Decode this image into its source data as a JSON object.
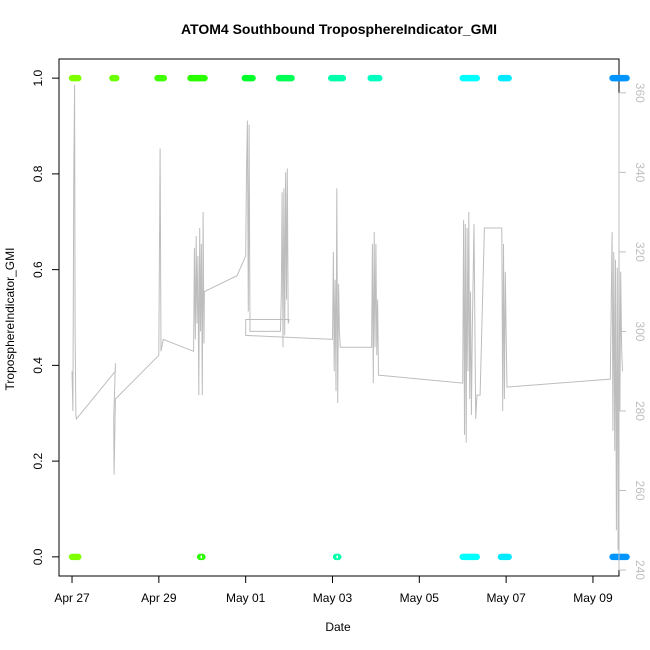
{
  "chart_data": {
    "type": "scatter",
    "title": "ATOM4 Southbound TroposphereIndicator_GMI",
    "xlabel": "Date",
    "ylabel": "TroposphereIndicator_GMI",
    "x_range_days": [
      -0.3,
      12.6
    ],
    "x_ticks": [
      {
        "day": 0,
        "label": "Apr 27"
      },
      {
        "day": 2,
        "label": "Apr 29"
      },
      {
        "day": 4,
        "label": "May 01"
      },
      {
        "day": 6,
        "label": "May 03"
      },
      {
        "day": 8,
        "label": "May 05"
      },
      {
        "day": 10,
        "label": "May 07"
      },
      {
        "day": 12,
        "label": "May 09"
      }
    ],
    "ylim": [
      -0.04,
      1.04
    ],
    "y_ticks": [
      0.0,
      0.2,
      0.4,
      0.6,
      0.8,
      1.0
    ],
    "y_tick_labels": [
      "0.0",
      "0.2",
      "0.4",
      "0.6",
      "0.8",
      "1.0"
    ],
    "y2_range": [
      238.5,
      368.5
    ],
    "y2_ticks": [
      240,
      260,
      280,
      300,
      320,
      340,
      360
    ],
    "y2_tick_labels": [
      "240",
      "260",
      "280",
      "300",
      "320",
      "340",
      "360"
    ],
    "y2_color": "#bfbfbf",
    "indicator_series": [
      {
        "start": 0.0,
        "end": 0.15,
        "value": 1,
        "color": "#7fff00"
      },
      {
        "start": 0.0,
        "end": 0.15,
        "value": 0,
        "color": "#7fff00"
      },
      {
        "start": 0.93,
        "end": 1.02,
        "value": 1,
        "color": "#6aff00"
      },
      {
        "start": 1.97,
        "end": 2.12,
        "value": 1,
        "color": "#40ff00"
      },
      {
        "start": 2.73,
        "end": 3.07,
        "value": 1,
        "color": "#2bff00"
      },
      {
        "start": 2.95,
        "end": 3.02,
        "value": 0,
        "color": "#2bff00"
      },
      {
        "start": 3.98,
        "end": 4.17,
        "value": 1,
        "color": "#00ff2b"
      },
      {
        "start": 4.77,
        "end": 5.07,
        "value": 1,
        "color": "#00ff55"
      },
      {
        "start": 5.97,
        "end": 6.25,
        "value": 1,
        "color": "#00ffaa"
      },
      {
        "start": 6.08,
        "end": 6.15,
        "value": 0,
        "color": "#00ffaa"
      },
      {
        "start": 6.88,
        "end": 7.08,
        "value": 1,
        "color": "#00ffbf"
      },
      {
        "start": 9.0,
        "end": 9.33,
        "value": 1,
        "color": "#00ffff"
      },
      {
        "start": 9.0,
        "end": 9.33,
        "value": 0,
        "color": "#00ffff"
      },
      {
        "start": 9.88,
        "end": 10.07,
        "value": 1,
        "color": "#00eaff"
      },
      {
        "start": 9.88,
        "end": 10.07,
        "value": 0,
        "color": "#00eaff"
      },
      {
        "start": 12.45,
        "end": 12.78,
        "value": 1,
        "color": "#0095ff"
      },
      {
        "start": 12.45,
        "end": 12.78,
        "value": 0,
        "color": "#0095ff"
      }
    ],
    "gray_series": {
      "name": "secondary axis trace",
      "color": "#bdbdbd",
      "points": [
        [
          0.0,
          290
        ],
        [
          0.02,
          280
        ],
        [
          0.04,
          340
        ],
        [
          0.06,
          362
        ],
        [
          0.07,
          300
        ],
        [
          0.09,
          279
        ],
        [
          0.1,
          278
        ],
        [
          1.0,
          290
        ],
        [
          1.0,
          292
        ],
        [
          0.96,
          278
        ],
        [
          0.97,
          264
        ],
        [
          1.0,
          283
        ],
        [
          2.0,
          294
        ],
        [
          2.02,
          330
        ],
        [
          2.03,
          346
        ],
        [
          2.05,
          295
        ],
        [
          2.1,
          298
        ],
        [
          2.8,
          295
        ],
        [
          2.82,
          321
        ],
        [
          2.84,
          298
        ],
        [
          2.86,
          324
        ],
        [
          2.88,
          302
        ],
        [
          2.9,
          319
        ],
        [
          2.92,
          284
        ],
        [
          2.94,
          326
        ],
        [
          2.96,
          300
        ],
        [
          2.98,
          322
        ],
        [
          3.0,
          284
        ],
        [
          3.02,
          330
        ],
        [
          3.04,
          297
        ],
        [
          3.05,
          310
        ],
        [
          3.8,
          314
        ],
        [
          4.0,
          319
        ],
        [
          4.02,
          340
        ],
        [
          4.04,
          353
        ],
        [
          4.06,
          305
        ],
        [
          4.08,
          352
        ],
        [
          4.1,
          300
        ],
        [
          4.12,
          300
        ],
        [
          4.8,
          300
        ],
        [
          4.82,
          309
        ],
        [
          4.84,
          335
        ],
        [
          4.86,
          296
        ],
        [
          4.88,
          336
        ],
        [
          4.9,
          299
        ],
        [
          4.92,
          340
        ],
        [
          4.94,
          308
        ],
        [
          4.96,
          341
        ],
        [
          4.98,
          302
        ],
        [
          5.0,
          303
        ],
        [
          4.0,
          303
        ],
        [
          4.0,
          299
        ],
        [
          6.0,
          298
        ],
        [
          6.02,
          320
        ],
        [
          6.04,
          290
        ],
        [
          6.06,
          313
        ],
        [
          6.08,
          285
        ],
        [
          6.1,
          336
        ],
        [
          6.12,
          282
        ],
        [
          6.14,
          312
        ],
        [
          6.16,
          300
        ],
        [
          6.18,
          296
        ],
        [
          6.9,
          296
        ],
        [
          6.92,
          322
        ],
        [
          6.94,
          287
        ],
        [
          6.96,
          325
        ],
        [
          6.98,
          296
        ],
        [
          7.0,
          322
        ],
        [
          7.02,
          294
        ],
        [
          7.04,
          308
        ],
        [
          7.06,
          289
        ],
        [
          9.0,
          287
        ],
        [
          9.02,
          328
        ],
        [
          9.04,
          274
        ],
        [
          9.06,
          327
        ],
        [
          9.08,
          272
        ],
        [
          9.1,
          326
        ],
        [
          9.12,
          290
        ],
        [
          9.14,
          330
        ],
        [
          9.16,
          283
        ],
        [
          9.18,
          310
        ],
        [
          9.2,
          279
        ],
        [
          9.22,
          300
        ],
        [
          9.26,
          327
        ],
        [
          9.3,
          278
        ],
        [
          9.33,
          284
        ],
        [
          9.4,
          284
        ],
        [
          9.5,
          326
        ],
        [
          9.9,
          326
        ],
        [
          9.92,
          280
        ],
        [
          9.94,
          322
        ],
        [
          9.96,
          283
        ],
        [
          9.98,
          315
        ],
        [
          10.0,
          300
        ],
        [
          10.02,
          286
        ],
        [
          12.4,
          288
        ],
        [
          12.44,
          325
        ],
        [
          12.46,
          275
        ],
        [
          12.48,
          320
        ],
        [
          12.5,
          270
        ],
        [
          12.52,
          318
        ],
        [
          12.54,
          250
        ],
        [
          12.56,
          316
        ],
        [
          12.58,
          245
        ],
        [
          12.6,
          322
        ],
        [
          12.62,
          280
        ],
        [
          12.64,
          315
        ],
        [
          12.66,
          296
        ],
        [
          12.68,
          290
        ]
      ]
    }
  }
}
